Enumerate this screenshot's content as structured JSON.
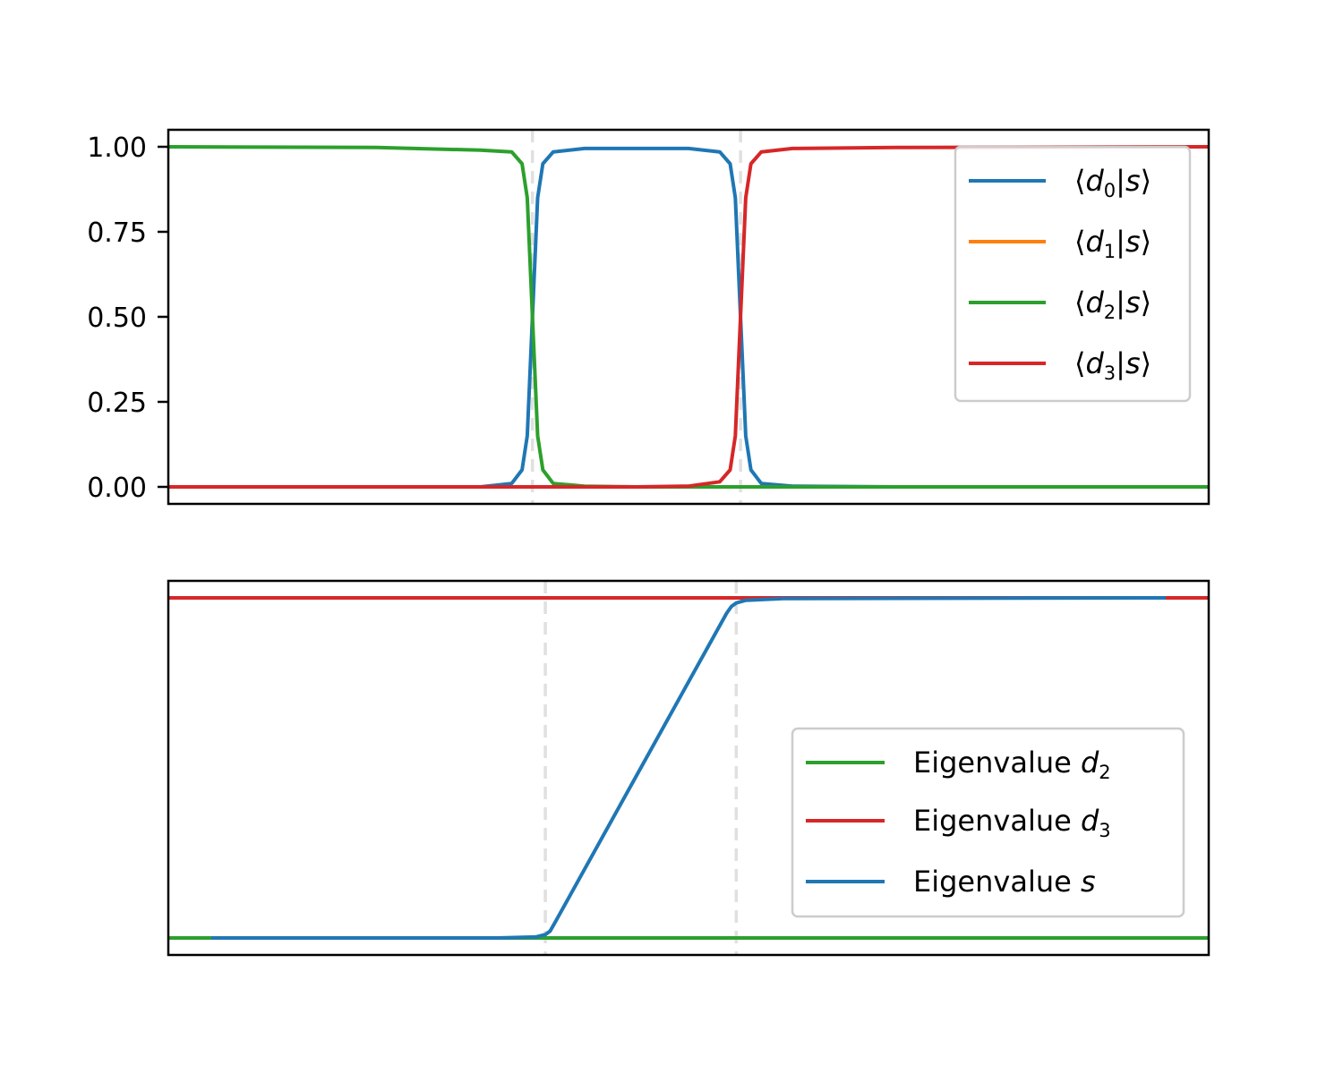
{
  "chart_data": [
    {
      "type": "line",
      "title": "",
      "xlabel": "",
      "ylabel": "",
      "x_range": [
        0,
        1
      ],
      "ylim": [
        -0.05,
        1.05
      ],
      "yticks": [
        0,
        0.25,
        0.5,
        0.75,
        1
      ],
      "ytick_labels": [
        "0.00",
        "0.25",
        "0.50",
        "0.75",
        "1.00"
      ],
      "x_ticks_shown": false,
      "grid": false,
      "vertical_markers": [
        0.35,
        0.55
      ],
      "legend_position": "upper right",
      "series": [
        {
          "name": "⟨d0|s⟩",
          "legend_symbol": "d",
          "legend_subscript": "0",
          "color": "#1f77b4",
          "x": [
            0,
            0.3,
            0.33,
            0.34,
            0.345,
            0.35,
            0.355,
            0.36,
            0.37,
            0.4,
            0.45,
            0.5,
            0.53,
            0.54,
            0.545,
            0.55,
            0.555,
            0.56,
            0.57,
            0.6,
            0.7,
            1
          ],
          "values": [
            0,
            0,
            0.01,
            0.05,
            0.15,
            0.5,
            0.85,
            0.95,
            0.985,
            0.995,
            0.995,
            0.995,
            0.985,
            0.95,
            0.85,
            0.5,
            0.15,
            0.05,
            0.01,
            0.002,
            0,
            0
          ]
        },
        {
          "name": "⟨d1|s⟩",
          "legend_symbol": "d",
          "legend_subscript": "1",
          "color": "#ff7f0e",
          "x": [
            0,
            1
          ],
          "values": [
            0,
            0
          ]
        },
        {
          "name": "⟨d2|s⟩",
          "legend_symbol": "d",
          "legend_subscript": "2",
          "color": "#2ca02c",
          "x": [
            0,
            0.2,
            0.3,
            0.33,
            0.34,
            0.345,
            0.35,
            0.355,
            0.36,
            0.37,
            0.4,
            0.45,
            1
          ],
          "values": [
            1,
            0.998,
            0.99,
            0.985,
            0.95,
            0.85,
            0.5,
            0.15,
            0.05,
            0.01,
            0.002,
            0,
            0
          ]
        },
        {
          "name": "⟨d3|s⟩",
          "legend_symbol": "d",
          "legend_subscript": "3",
          "color": "#d62728",
          "x": [
            0,
            0.45,
            0.5,
            0.53,
            0.54,
            0.545,
            0.55,
            0.555,
            0.56,
            0.57,
            0.6,
            0.7,
            1
          ],
          "values": [
            0,
            0,
            0.002,
            0.015,
            0.05,
            0.15,
            0.5,
            0.85,
            0.95,
            0.985,
            0.995,
            0.998,
            1
          ]
        }
      ]
    },
    {
      "type": "line",
      "title": "",
      "xlabel": "",
      "ylabel": "",
      "x_range": [
        -0.045,
        1.045
      ],
      "ylim": [
        -0.05,
        1.05
      ],
      "x_ticks_shown": false,
      "y_ticks_shown": false,
      "grid": false,
      "vertical_markers": [
        0.35,
        0.55
      ],
      "legend_position": "lower right",
      "series": [
        {
          "name": "Eigenvalue d2",
          "legend_prefix": "Eigenvalue ",
          "legend_symbol": "d",
          "legend_subscript": "2",
          "color": "#2ca02c",
          "x": [
            -0.045,
            1.045
          ],
          "values": [
            0,
            0
          ]
        },
        {
          "name": "Eigenvalue d3",
          "legend_prefix": "Eigenvalue ",
          "legend_symbol": "d",
          "legend_subscript": "3",
          "color": "#d62728",
          "x": [
            -0.045,
            1.045
          ],
          "values": [
            1,
            1
          ]
        },
        {
          "name": "Eigenvalue s",
          "legend_prefix": "Eigenvalue ",
          "legend_symbol": "s",
          "legend_subscript": "",
          "color": "#1f77b4",
          "x": [
            0,
            0.3,
            0.34,
            0.35,
            0.355,
            0.36,
            0.45,
            0.54,
            0.545,
            0.55,
            0.56,
            0.6,
            1
          ],
          "values": [
            0,
            0,
            0.003,
            0.01,
            0.02,
            0.045,
            0.5,
            0.955,
            0.975,
            0.985,
            0.993,
            0.998,
            1
          ]
        }
      ]
    }
  ]
}
